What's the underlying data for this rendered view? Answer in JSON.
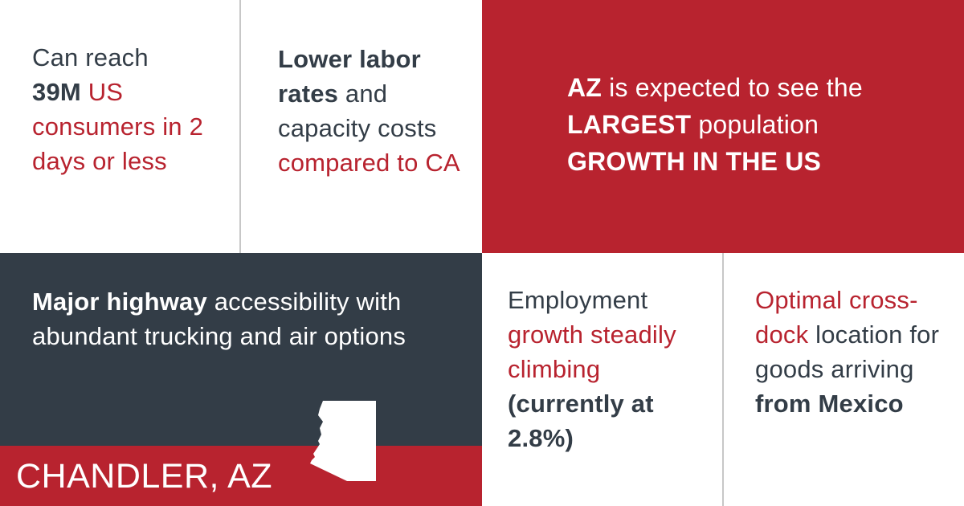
{
  "colors": {
    "brand_red": "#b8232f",
    "dark_slate": "#333d47",
    "white": "#ffffff",
    "divider": "#c7c7c7"
  },
  "cells": {
    "reach": {
      "line1": "Can reach",
      "stat": "39M",
      "us": " US",
      "rest": "consumers in 2 days or less"
    },
    "labor": {
      "bold": "Lower labor rates",
      "and": " and capacity costs ",
      "compared": "compared to CA"
    },
    "population": {
      "az": "AZ",
      "expected": " is expected to see the ",
      "largest": "LARGEST",
      "population": " population ",
      "growth": "GROWTH IN THE US"
    },
    "highway": {
      "bold": "Major highway",
      "rest": " accessibility with abundant trucking and air options"
    },
    "employment": {
      "line1": "Employment ",
      "red": "growth steadily climbing",
      "bold": "(currently at 2.8%)"
    },
    "crossdock": {
      "red": "Optimal cross-dock",
      "mid": " location for goods arriving ",
      "bold": "from Mexico"
    }
  },
  "banner": {
    "location": "CHANDLER, AZ",
    "icon": "arizona-state-icon"
  }
}
